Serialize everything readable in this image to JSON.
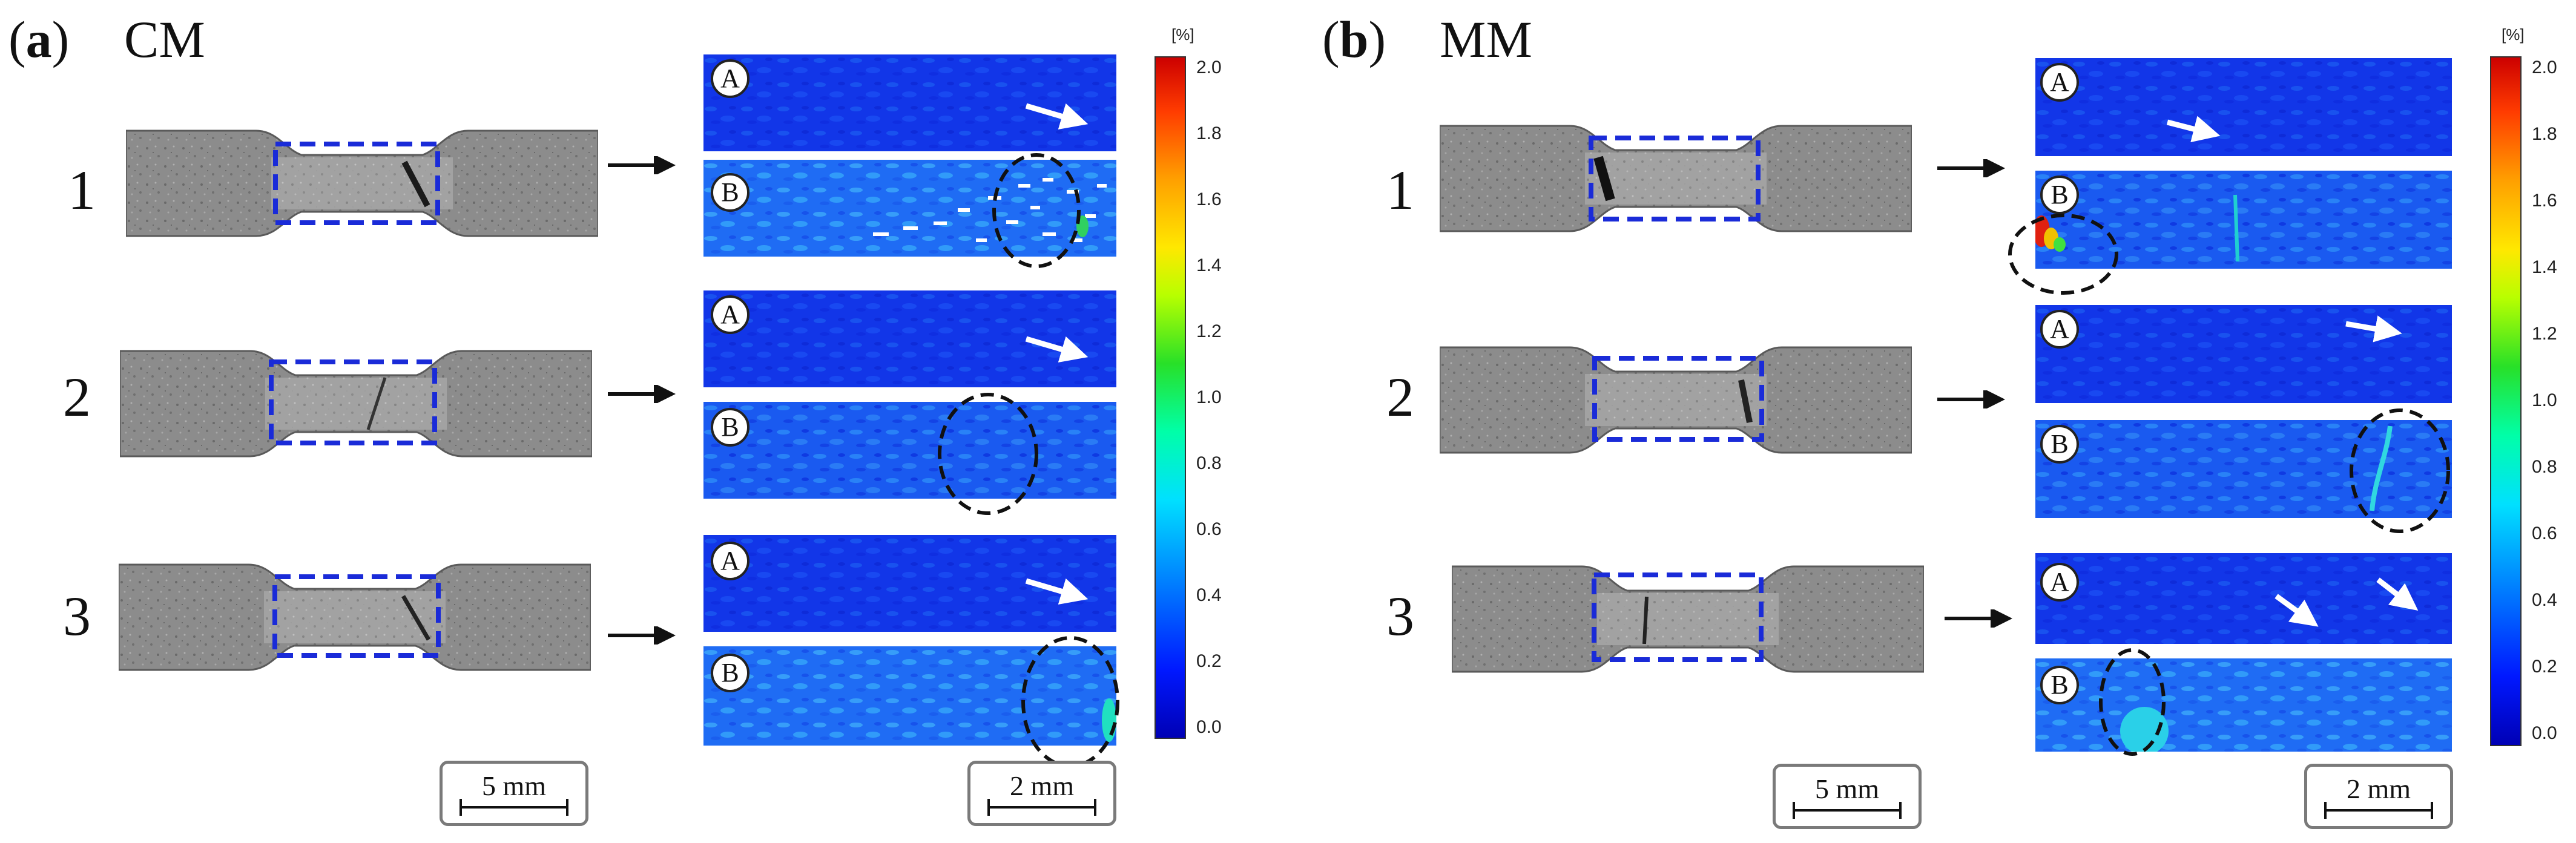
{
  "panels": [
    {
      "id": "a",
      "label_open": "(",
      "label_letter": "a",
      "label_close": ")",
      "title": "CM",
      "rows": [
        "1",
        "2",
        "3"
      ],
      "map_labels": [
        "A",
        "B"
      ],
      "scale_specimen": "5 mm",
      "scale_map": "2 mm"
    },
    {
      "id": "b",
      "label_open": "(",
      "label_letter": "b",
      "label_close": ")",
      "title": "MM",
      "rows": [
        "1",
        "2",
        "3"
      ],
      "map_labels": [
        "A",
        "B"
      ],
      "scale_specimen": "5 mm",
      "scale_map": "2 mm"
    }
  ],
  "colorbar": {
    "unit": "[%]",
    "ticks": [
      "2.0",
      "1.8",
      "1.6",
      "1.4",
      "1.2",
      "1.0",
      "0.8",
      "0.6",
      "0.4",
      "0.2",
      "0.0"
    ],
    "colors": [
      "#0000b0",
      "#0022ff",
      "#0088ff",
      "#00d8ff",
      "#00ffa0",
      "#20e020",
      "#b8ff00",
      "#ffe600",
      "#ff9000",
      "#ff3000",
      "#cc0000"
    ]
  },
  "icons": {
    "arrow_black": "right-arrow-icon",
    "arrow_white": "white-arrow-icon",
    "ellipse": "dashed-ellipse-icon"
  }
}
